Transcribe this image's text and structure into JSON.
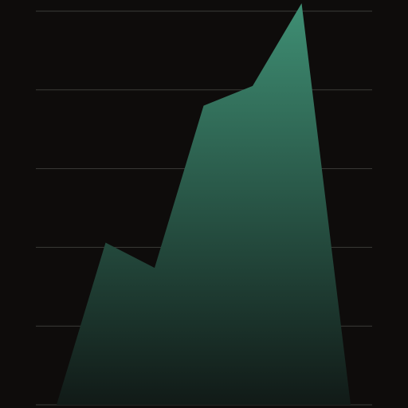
{
  "colors": {
    "background": "#0e0c0b",
    "gridline": "#3b3b38",
    "area_top": "#3f8f74",
    "area_bottom": "#111a17"
  },
  "chart_data": {
    "type": "area",
    "title": "",
    "xlabel": "",
    "ylabel": "",
    "grid": true,
    "legend": "none",
    "x": [
      0,
      1,
      2,
      3,
      4,
      5,
      6
    ],
    "xlim": [
      0,
      6
    ],
    "ylim": [
      0,
      5
    ],
    "gridlines": [
      0,
      1,
      2,
      3,
      4,
      5
    ],
    "series": [
      {
        "values": [
          0,
          2.06,
          1.74,
          3.8,
          4.05,
          5.1,
          0
        ]
      }
    ]
  }
}
